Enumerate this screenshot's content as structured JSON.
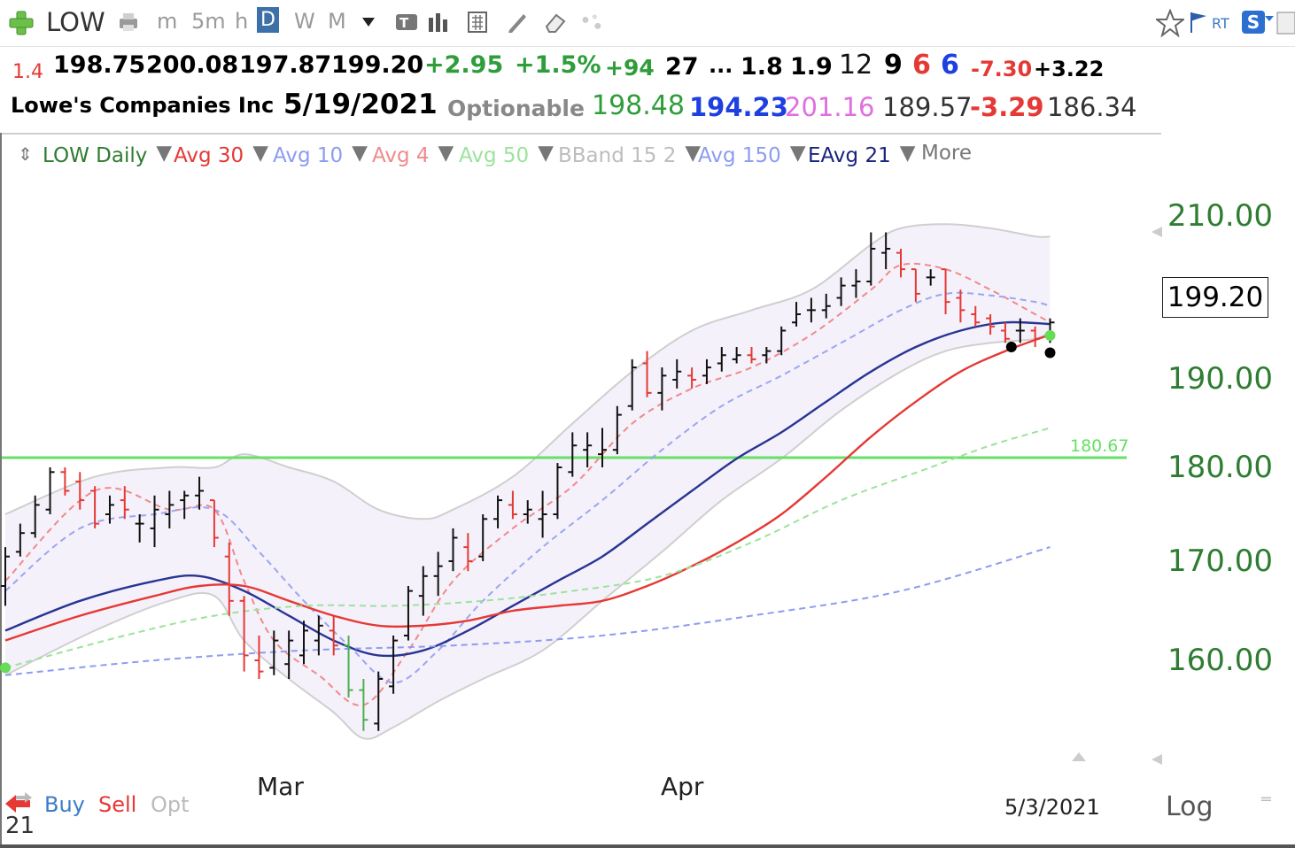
{
  "toolbar": {
    "symbol": "LOW",
    "timeframes": [
      "m",
      "5m",
      "h",
      "D",
      "W",
      "M"
    ],
    "active_timeframe": "D",
    "rt_label": "RT",
    "s_label": "S"
  },
  "quote_row1": {
    "ratio": "1.4",
    "open": "198.75",
    "high": "200.08",
    "low": "197.87",
    "close": "199.20",
    "change": "+2.95",
    "change_pct": "+1.5%",
    "vol_change": "+94",
    "n27": "27",
    "ellipsis": "...",
    "v1": "1.8",
    "v2": "1.9",
    "v3": "12",
    "v4": "9",
    "v5": "6",
    "v6": "6",
    "v7": "-7.30",
    "v8": "+3.22"
  },
  "quote_row2": {
    "company": "Lowe's Companies Inc",
    "date": "5/19/2021",
    "optionable": "Optionable",
    "p1": "198.48",
    "p2": "194.23",
    "p3": "201.16",
    "p4": "189.57",
    "p5": "-3.29",
    "p6": "186.34"
  },
  "legend": {
    "items": [
      "LOW Daily",
      "Avg 30",
      "Avg 10",
      "Avg 4",
      "Avg 50",
      "BBand 15 2",
      "Avg 150",
      "EAvg 21",
      "More"
    ],
    "colors": [
      "#2e7d32",
      "#e53935",
      "#8c9cf0",
      "#f08a8a",
      "#9be39b",
      "#bdbdbd",
      "#8c9cf0",
      "#1a237e",
      "#777777"
    ]
  },
  "chart_data": {
    "type": "ohlc",
    "title": "LOW Daily",
    "y_ticks": [
      "210.00",
      "190.00",
      "180.00",
      "170.00",
      "160.00"
    ],
    "x_ticks": [
      "Mar",
      "Apr"
    ],
    "last_date_label": "5/3/2021",
    "current_price_label": "199.20",
    "horizontal_line": {
      "value": 180.67,
      "label": "180.67",
      "color": "#66e066"
    },
    "ohlc": [
      [
        167.5,
        171.5,
        165.5,
        170.5
      ],
      [
        171.0,
        174.0,
        170.5,
        173.0
      ],
      [
        173.0,
        177.0,
        172.5,
        176.0
      ],
      [
        175.5,
        180.0,
        175.0,
        179.5
      ],
      [
        179.5,
        180.0,
        177.0,
        177.5
      ],
      [
        178.5,
        179.5,
        175.5,
        176.5
      ],
      [
        177.5,
        178.0,
        173.5,
        174.0
      ],
      [
        175.0,
        177.0,
        174.0,
        176.0
      ],
      [
        176.5,
        178.0,
        174.5,
        175.5
      ],
      [
        174.0,
        175.0,
        172.0,
        174.0
      ],
      [
        173.5,
        177.0,
        171.5,
        175.5
      ],
      [
        175.0,
        177.5,
        173.5,
        176.0
      ],
      [
        176.5,
        177.5,
        174.5,
        177.0
      ],
      [
        177.0,
        179.0,
        175.5,
        177.5
      ],
      [
        176.5,
        176.5,
        171.5,
        172.5
      ],
      [
        170.5,
        172.0,
        164.5,
        166.0
      ],
      [
        166.0,
        166.5,
        158.5,
        160.5
      ],
      [
        160.0,
        162.5,
        157.5,
        158.5
      ],
      [
        159.0,
        163.0,
        158.0,
        162.0
      ],
      [
        159.5,
        163.0,
        157.5,
        162.0
      ],
      [
        160.5,
        164.0,
        159.5,
        163.0
      ],
      [
        162.0,
        164.5,
        160.5,
        163.5
      ],
      [
        163.0,
        164.5,
        160.5,
        161.5
      ],
      [
        161.5,
        162.5,
        155.0,
        156.0
      ],
      [
        156.0,
        157.5,
        150.5,
        152.0
      ],
      [
        151.5,
        158.5,
        150.5,
        157.5
      ],
      [
        156.5,
        162.5,
        155.5,
        162.0
      ],
      [
        162.5,
        167.5,
        162.0,
        167.0
      ],
      [
        166.5,
        169.5,
        164.5,
        168.5
      ],
      [
        168.5,
        171.0,
        166.5,
        169.5
      ],
      [
        170.0,
        173.5,
        169.0,
        172.5
      ],
      [
        171.5,
        173.0,
        169.0,
        170.0
      ],
      [
        170.5,
        175.0,
        170.0,
        174.5
      ],
      [
        174.5,
        177.0,
        173.5,
        176.5
      ],
      [
        176.0,
        177.5,
        174.5,
        175.0
      ],
      [
        175.0,
        176.5,
        174.0,
        175.5
      ],
      [
        174.5,
        177.5,
        172.5,
        175.0
      ],
      [
        175.0,
        180.5,
        174.5,
        180.0
      ],
      [
        179.5,
        184.0,
        179.0,
        182.5
      ],
      [
        182.0,
        184.0,
        180.0,
        182.5
      ],
      [
        181.5,
        184.5,
        180.0,
        182.0
      ],
      [
        182.0,
        187.0,
        181.5,
        186.0
      ],
      [
        187.0,
        192.5,
        186.5,
        191.5
      ],
      [
        192.0,
        193.5,
        188.0,
        188.5
      ],
      [
        188.5,
        191.5,
        186.5,
        190.5
      ],
      [
        190.0,
        192.5,
        189.0,
        191.0
      ],
      [
        190.5,
        191.5,
        189.0,
        190.0
      ],
      [
        190.5,
        192.5,
        189.5,
        191.5
      ],
      [
        192.0,
        194.0,
        191.0,
        193.0
      ],
      [
        192.5,
        194.0,
        192.0,
        193.0
      ],
      [
        193.0,
        194.0,
        192.0,
        192.5
      ],
      [
        193.0,
        194.0,
        192.0,
        193.5
      ],
      [
        193.5,
        196.5,
        193.0,
        196.0
      ],
      [
        197.0,
        199.5,
        196.5,
        198.0
      ],
      [
        198.5,
        200.0,
        197.0,
        198.5
      ],
      [
        198.5,
        200.5,
        197.5,
        199.0
      ],
      [
        200.0,
        202.5,
        199.0,
        201.5
      ],
      [
        201.5,
        203.5,
        200.0,
        202.0
      ],
      [
        202.0,
        208.0,
        201.5,
        206.0
      ],
      [
        205.5,
        208.0,
        203.5,
        206.0
      ],
      [
        205.5,
        206.0,
        202.5,
        203.5
      ],
      [
        203.5,
        203.5,
        199.5,
        200.5
      ],
      [
        202.5,
        203.5,
        201.5,
        202.5
      ],
      [
        203.5,
        203.5,
        198.0,
        199.5
      ],
      [
        200.0,
        201.0,
        197.0,
        198.5
      ],
      [
        198.0,
        199.0,
        196.5,
        197.0
      ],
      [
        197.5,
        198.0,
        195.5,
        196.5
      ],
      [
        196.0,
        197.0,
        194.5,
        195.0
      ],
      [
        196.0,
        197.5,
        194.5,
        196.0
      ],
      [
        196.0,
        196.5,
        194.0,
        195.0
      ],
      [
        195.5,
        197.5,
        194.5,
        197.0
      ]
    ],
    "series": [
      {
        "name": "Avg 4",
        "color": "#f08a8a",
        "dashed": true,
        "values": [
          [
            0,
            168
          ],
          [
            6,
            177.5
          ],
          [
            11,
            175.5
          ],
          [
            14,
            175.5
          ],
          [
            16,
            168
          ],
          [
            18,
            162
          ],
          [
            21,
            158
          ],
          [
            24,
            154
          ],
          [
            27,
            161
          ],
          [
            30,
            168
          ],
          [
            34,
            173.5
          ],
          [
            38,
            178
          ],
          [
            42,
            185
          ],
          [
            46,
            189
          ],
          [
            50,
            191.5
          ],
          [
            54,
            195.5
          ],
          [
            58,
            201
          ],
          [
            60,
            204
          ],
          [
            63,
            203.5
          ],
          [
            66,
            201
          ],
          [
            69,
            198
          ],
          [
            70,
            197
          ]
        ]
      },
      {
        "name": "Avg 10",
        "color": "#9aa6f0",
        "dashed": true,
        "values": [
          [
            0,
            167
          ],
          [
            5,
            173.5
          ],
          [
            10,
            175
          ],
          [
            14,
            175.5
          ],
          [
            17,
            171
          ],
          [
            20,
            166
          ],
          [
            23,
            161.5
          ],
          [
            26,
            157
          ],
          [
            29,
            161
          ],
          [
            32,
            166
          ],
          [
            36,
            171.5
          ],
          [
            40,
            176.5
          ],
          [
            44,
            182
          ],
          [
            48,
            187
          ],
          [
            52,
            190.5
          ],
          [
            56,
            194.5
          ],
          [
            60,
            198.5
          ],
          [
            63,
            200.5
          ],
          [
            66,
            200.3
          ],
          [
            69,
            199.5
          ],
          [
            70,
            199
          ]
        ]
      },
      {
        "name": "EAvg 21",
        "color": "#283593",
        "dashed": false,
        "values": [
          [
            0,
            163
          ],
          [
            5,
            166
          ],
          [
            10,
            168
          ],
          [
            13,
            168.5
          ],
          [
            16,
            167
          ],
          [
            19,
            164.5
          ],
          [
            22,
            162
          ],
          [
            25,
            160.5
          ],
          [
            28,
            161
          ],
          [
            31,
            163
          ],
          [
            34,
            165.5
          ],
          [
            37,
            168
          ],
          [
            40,
            170.5
          ],
          [
            43,
            174
          ],
          [
            46,
            177.5
          ],
          [
            49,
            181
          ],
          [
            52,
            184
          ],
          [
            55,
            187.5
          ],
          [
            58,
            191
          ],
          [
            61,
            194
          ],
          [
            64,
            196
          ],
          [
            67,
            197
          ],
          [
            70,
            196.8
          ]
        ]
      },
      {
        "name": "Avg 30",
        "color": "#e53935",
        "dashed": false,
        "values": [
          [
            0,
            162
          ],
          [
            5,
            164.5
          ],
          [
            10,
            166.5
          ],
          [
            13,
            167.5
          ],
          [
            16,
            167.5
          ],
          [
            19,
            166
          ],
          [
            22,
            164.5
          ],
          [
            25,
            163.5
          ],
          [
            28,
            163.5
          ],
          [
            31,
            164
          ],
          [
            34,
            165
          ],
          [
            37,
            165.5
          ],
          [
            40,
            166
          ],
          [
            43,
            167.5
          ],
          [
            46,
            169.5
          ],
          [
            49,
            172
          ],
          [
            52,
            175
          ],
          [
            55,
            179
          ],
          [
            58,
            183.5
          ],
          [
            61,
            187.5
          ],
          [
            64,
            191
          ],
          [
            67,
            193.5
          ],
          [
            70,
            195.5
          ]
        ]
      },
      {
        "name": "Avg 50",
        "color": "#9be39b",
        "dashed": true,
        "values": [
          [
            0,
            159
          ],
          [
            8,
            162.5
          ],
          [
            14,
            164.5
          ],
          [
            20,
            165.5
          ],
          [
            26,
            165.5
          ],
          [
            32,
            166
          ],
          [
            38,
            167
          ],
          [
            44,
            168.5
          ],
          [
            50,
            172
          ],
          [
            56,
            176.5
          ],
          [
            62,
            180
          ],
          [
            66,
            182.5
          ],
          [
            70,
            184.5
          ]
        ]
      },
      {
        "name": "Avg 150",
        "color": "#8c9cf0",
        "dashed": true,
        "values": [
          [
            0,
            158
          ],
          [
            10,
            160
          ],
          [
            20,
            161
          ],
          [
            30,
            161.5
          ],
          [
            40,
            162.5
          ],
          [
            50,
            164.5
          ],
          [
            60,
            167
          ],
          [
            70,
            171.5
          ]
        ]
      }
    ],
    "bband": {
      "upper": [
        [
          0,
          175
        ],
        [
          6,
          179
        ],
        [
          11,
          180
        ],
        [
          14,
          180
        ],
        [
          16,
          181.5
        ],
        [
          19,
          180
        ],
        [
          22,
          178.5
        ],
        [
          25,
          175.5
        ],
        [
          28,
          174.5
        ],
        [
          30,
          175.5
        ],
        [
          34,
          179
        ],
        [
          38,
          185
        ],
        [
          42,
          191
        ],
        [
          46,
          196
        ],
        [
          50,
          198.5
        ],
        [
          54,
          201
        ],
        [
          58,
          206.5
        ],
        [
          60,
          208.5
        ],
        [
          63,
          209
        ],
        [
          66,
          208.5
        ],
        [
          69,
          207.5
        ],
        [
          70,
          207.5
        ]
      ],
      "lower": [
        [
          0,
          158
        ],
        [
          6,
          163
        ],
        [
          11,
          166
        ],
        [
          14,
          166.5
        ],
        [
          16,
          162
        ],
        [
          19,
          157.5
        ],
        [
          22,
          153
        ],
        [
          24,
          149.5
        ],
        [
          26,
          151
        ],
        [
          29,
          154.5
        ],
        [
          32,
          157.5
        ],
        [
          36,
          161
        ],
        [
          40,
          166
        ],
        [
          44,
          171
        ],
        [
          48,
          176.5
        ],
        [
          52,
          181
        ],
        [
          56,
          186.5
        ],
        [
          60,
          191
        ],
        [
          63,
          193.5
        ],
        [
          66,
          194.5
        ],
        [
          69,
          195
        ],
        [
          70,
          196
        ]
      ]
    },
    "markers": [
      {
        "day": 68,
        "value": 194.0,
        "color": "#000000"
      },
      {
        "day": 70,
        "value": 193.3,
        "color": "#000000"
      },
      {
        "day": 70,
        "value": 195.4,
        "color": "#66dd55"
      },
      {
        "day": 0,
        "value": 159.0,
        "color": "#66dd55"
      }
    ]
  },
  "bottom": {
    "buy": "Buy",
    "sell": "Sell",
    "opt": "Opt",
    "corner_num": "21",
    "log": "Log"
  }
}
